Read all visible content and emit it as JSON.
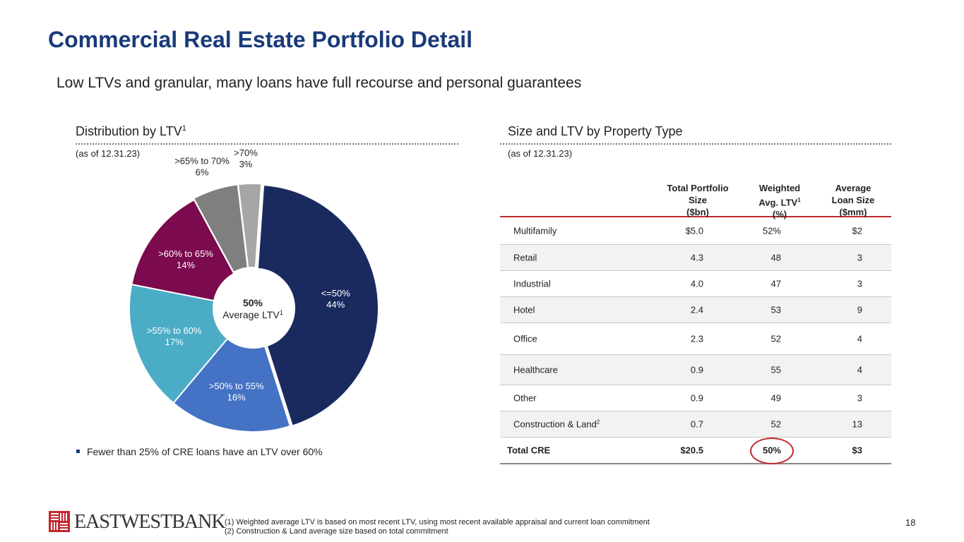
{
  "title": "Commercial Real Estate Portfolio Detail",
  "subtitle": "Low LTVs and granular, many loans have full recourse and personal guarantees",
  "left_section": {
    "heading": "Distribution by LTV",
    "heading_sup": "1",
    "as_of": "(as of 12.31.23)",
    "center_value": "50%",
    "center_label": "Average LTV",
    "center_sup": "1",
    "bullet": "Fewer than 25% of CRE loans have an LTV over 60%"
  },
  "right_section": {
    "heading": "Size and LTV by Property Type",
    "as_of": "(as of 12.31.23)"
  },
  "table": {
    "headers": {
      "col1": "Total Portfolio\nSize\n($bn)",
      "col2a": "Weighted\nAvg. LTV",
      "col2_sup": "1",
      "col2b": "(%)",
      "col3": "Average\nLoan Size\n($mm)"
    },
    "rows": [
      {
        "type": "Multifamily",
        "size": "$5.0",
        "ltv": "52%",
        "avg": "$2"
      },
      {
        "type": "Retail",
        "size": "4.3",
        "ltv": "48",
        "avg": "3"
      },
      {
        "type": "Industrial",
        "size": "4.0",
        "ltv": "47",
        "avg": "3"
      },
      {
        "type": "Hotel",
        "size": "2.4",
        "ltv": "53",
        "avg": "9"
      },
      {
        "type": "Office",
        "size": "2.3",
        "ltv": "52",
        "avg": "4"
      },
      {
        "type": "Healthcare",
        "size": "0.9",
        "ltv": "55",
        "avg": "4"
      },
      {
        "type": "Other",
        "size": "0.9",
        "ltv": "49",
        "avg": "3"
      },
      {
        "type": "Construction & Land",
        "type_sup": "2",
        "size": "0.7",
        "ltv": "52",
        "avg": "13"
      }
    ],
    "total": {
      "type": "Total CRE",
      "size": "$20.5",
      "ltv": "50%",
      "avg": "$3"
    }
  },
  "footnotes": [
    "(1) Weighted average LTV is based on most recent LTV, using most recent available appraisal and current loan commitment",
    "(2) Construction & Land average size based on total commitment"
  ],
  "logo_text": "EASTWESTBANK",
  "page_number": "18",
  "chart_data": {
    "type": "pie",
    "title": "Distribution by LTV",
    "categories": [
      "<=50%",
      ">50% to 55%",
      ">55% to 60%",
      ">60% to 65%",
      ">65% to 70%",
      ">70%"
    ],
    "values": [
      44,
      16,
      17,
      14,
      6,
      3
    ],
    "labels": [
      "44%",
      "16%",
      "17%",
      "14%",
      "6%",
      "3%"
    ],
    "colors": [
      "#1b2a5e",
      "#4472c4",
      "#4bacc6",
      "#7b0a4e",
      "#7f7f7f",
      "#a6a6a6"
    ]
  }
}
